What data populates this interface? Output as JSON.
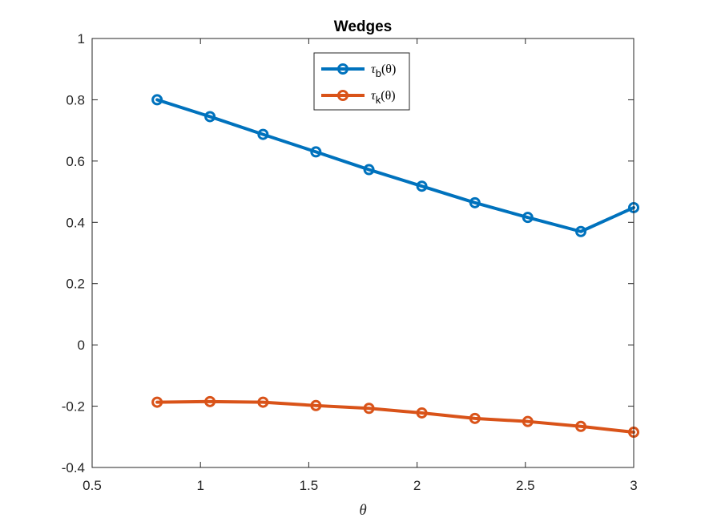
{
  "chart_data": {
    "type": "line",
    "title": "Wedges",
    "xlabel": "θ",
    "ylabel": "",
    "xlim": [
      0.5,
      3
    ],
    "ylim": [
      -0.4,
      1
    ],
    "xticks": [
      0.5,
      1,
      1.5,
      2,
      2.5,
      3
    ],
    "xtick_labels": [
      "0.5",
      "1",
      "1.5",
      "2",
      "2.5",
      "3"
    ],
    "yticks": [
      -0.4,
      -0.2,
      0,
      0.2,
      0.4,
      0.6,
      0.8,
      1
    ],
    "ytick_labels": [
      "-0.4",
      "-0.2",
      "0",
      "0.2",
      "0.4",
      "0.6",
      "0.8",
      "1"
    ],
    "grid": false,
    "legend_position": "top-center",
    "x": [
      0.8,
      1.044,
      1.289,
      1.533,
      1.778,
      2.022,
      2.267,
      2.511,
      2.756,
      3.0
    ],
    "series": [
      {
        "name": "τ_b(θ)",
        "legend_main": "τ",
        "legend_sub": "b",
        "legend_suffix": "(θ)",
        "color": "#0072BD",
        "marker": "circle",
        "values": [
          0.8,
          0.745,
          0.687,
          0.63,
          0.572,
          0.518,
          0.464,
          0.416,
          0.37,
          0.448
        ]
      },
      {
        "name": "τ_k(θ)",
        "legend_main": "τ",
        "legend_sub": "k",
        "legend_suffix": "(θ)",
        "color": "#D95319",
        "marker": "circle",
        "values": [
          -0.187,
          -0.185,
          -0.187,
          -0.198,
          -0.207,
          -0.222,
          -0.24,
          -0.25,
          -0.266,
          -0.285
        ]
      }
    ]
  }
}
